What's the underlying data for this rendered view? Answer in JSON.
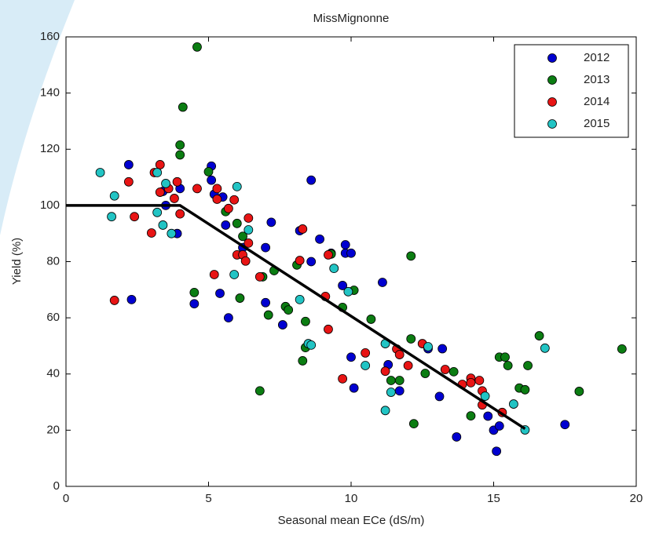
{
  "chart_data": {
    "type": "scatter",
    "title": "MissMignonne",
    "x_label": "Seasonal mean ECe (dS/m)",
    "y_label": "Yield (%)",
    "xlim": [
      0,
      20
    ],
    "ylim": [
      0,
      160
    ],
    "xticks": [
      0,
      5,
      10,
      15,
      20
    ],
    "yticks": [
      0,
      20,
      40,
      60,
      80,
      100,
      120,
      140,
      160
    ],
    "legend": "upper right",
    "grid": false,
    "series": [
      {
        "name": "2012",
        "color": "#0000d0",
        "x": [
          2.2,
          2.3,
          3.4,
          3.5,
          4.0,
          3.9,
          4.5,
          5.1,
          5.1,
          5.2,
          5.4,
          5.5,
          5.7,
          5.6,
          6.2,
          7.0,
          7.0,
          7.2,
          7.6,
          8.2,
          8.6,
          8.6,
          8.9,
          9.3,
          9.8,
          9.8,
          10.0,
          9.7,
          10.1,
          10.0,
          11.1,
          11.7,
          11.3,
          12.7,
          13.2,
          13.7,
          13.1,
          14.8,
          15.0,
          15.2,
          15.1,
          17.5
        ],
        "values": [
          114.5,
          66.5,
          105,
          100,
          106,
          90,
          65,
          114,
          109,
          104,
          68.7,
          103,
          60,
          93,
          85,
          85,
          65.4,
          94,
          57.5,
          91,
          109,
          80,
          88,
          83,
          86,
          83,
          83,
          71.5,
          35,
          46,
          72.6,
          34,
          43.3,
          49,
          49,
          17.6,
          32,
          25,
          20,
          21.5,
          12.5,
          22
        ]
      },
      {
        "name": "2013",
        "color": "#0b7d12",
        "x": [
          4.6,
          4.1,
          4.0,
          4.0,
          5.0,
          4.5,
          5.6,
          6.0,
          6.2,
          6.1,
          6.8,
          6.9,
          7.1,
          7.3,
          7.7,
          7.8,
          8.1,
          8.3,
          8.4,
          8.4,
          9.3,
          9.7,
          10.1,
          10.7,
          11.4,
          11.7,
          12.1,
          12.1,
          12.2,
          12.6,
          13.6,
          14.2,
          15.2,
          15.4,
          15.5,
          15.9,
          16.1,
          16.2,
          16.6,
          18.0,
          19.5
        ],
        "values": [
          156.4,
          135,
          121.5,
          118,
          112,
          69,
          97.8,
          93.6,
          89,
          67,
          34,
          74.6,
          61,
          76.8,
          64,
          62.8,
          78.8,
          44.7,
          58.7,
          49.4,
          82.7,
          63.7,
          69.8,
          59.5,
          37.7,
          37.7,
          82,
          52.5,
          22.3,
          40.2,
          40.8,
          25.1,
          46,
          46,
          43,
          35,
          34.4,
          43,
          53.6,
          33.8,
          48.9
        ]
      },
      {
        "name": "2014",
        "color": "#e81414",
        "x": [
          2.2,
          1.7,
          2.4,
          3.1,
          3.3,
          3.0,
          3.3,
          3.6,
          3.8,
          3.9,
          4.0,
          4.6,
          5.2,
          5.3,
          5.3,
          5.7,
          5.9,
          6.0,
          6.2,
          6.3,
          6.4,
          6.4,
          6.8,
          8.2,
          8.3,
          9.2,
          9.2,
          9.1,
          9.7,
          10.5,
          11.2,
          11.6,
          11.7,
          12.0,
          12.5,
          13.3,
          13.9,
          14.2,
          14.2,
          14.5,
          14.6,
          14.6,
          15.3
        ],
        "values": [
          108.4,
          66.2,
          96,
          111.7,
          114.5,
          90.2,
          104.7,
          106,
          102.5,
          108.4,
          97,
          106,
          75.4,
          106,
          102.2,
          98.9,
          102,
          82.4,
          82.4,
          80.2,
          95.5,
          86.6,
          74.6,
          80.4,
          91.6,
          82.4,
          55.9,
          67.6,
          38.3,
          47.5,
          41,
          48.9,
          46.9,
          43,
          50.8,
          41.6,
          36.3,
          38.5,
          36.9,
          37.7,
          29,
          34,
          26.3
        ]
      },
      {
        "name": "2015",
        "color": "#22c4c4",
        "x": [
          1.2,
          1.6,
          1.7,
          3.2,
          3.2,
          3.5,
          3.4,
          3.7,
          6.0,
          5.9,
          6.4,
          8.2,
          8.5,
          8.6,
          9.4,
          9.9,
          10.5,
          11.2,
          11.4,
          11.2,
          12.7,
          14.7,
          15.7,
          16.1,
          16.8
        ],
        "values": [
          111.7,
          96,
          103.4,
          111.7,
          97.5,
          107.8,
          93,
          90,
          106.7,
          75.4,
          91.3,
          66.5,
          50.8,
          50.3,
          77.6,
          69.3,
          43,
          27,
          33.5,
          50.8,
          49.7,
          32.1,
          29.3,
          20.1,
          49.2
        ]
      }
    ],
    "fit": {
      "color": "#000000",
      "x": [
        0,
        4,
        16.1
      ],
      "values": [
        100,
        100,
        20.5
      ]
    }
  }
}
